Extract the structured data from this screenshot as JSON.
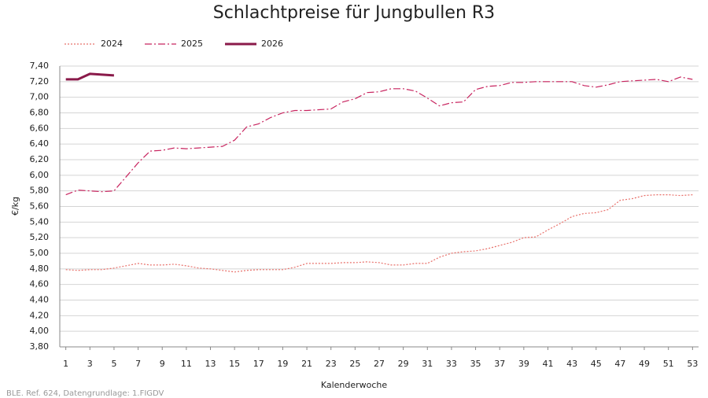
{
  "chart_data": {
    "type": "line",
    "title": "Schlachtpreise für Jungbullen R3",
    "x_label": "Kalenderwoche",
    "y_label": "€/kg",
    "source": "BLE. Ref. 624, Datengrundlage: 1.FIGDV",
    "x": [
      1,
      2,
      3,
      4,
      5,
      6,
      7,
      8,
      9,
      10,
      11,
      12,
      13,
      14,
      15,
      16,
      17,
      18,
      19,
      20,
      21,
      22,
      23,
      24,
      25,
      26,
      27,
      28,
      29,
      30,
      31,
      32,
      33,
      34,
      35,
      36,
      37,
      38,
      39,
      40,
      41,
      42,
      43,
      44,
      45,
      46,
      47,
      48,
      49,
      50,
      51,
      52,
      53
    ],
    "series": [
      {
        "name": "2024",
        "color": "#e8706a",
        "line_style": "dotted",
        "values": [
          4.79,
          4.78,
          4.79,
          4.79,
          4.81,
          4.84,
          4.87,
          4.85,
          4.85,
          4.86,
          4.84,
          4.81,
          4.8,
          4.78,
          4.76,
          4.78,
          4.79,
          4.79,
          4.79,
          4.82,
          4.87,
          4.87,
          4.87,
          4.88,
          4.88,
          4.89,
          4.88,
          4.85,
          4.85,
          4.87,
          4.87,
          4.95,
          5.0,
          5.02,
          5.03,
          5.06,
          5.1,
          5.14,
          5.2,
          5.21,
          5.3,
          5.38,
          5.47,
          5.51,
          5.52,
          5.56,
          5.68,
          5.7,
          5.74,
          5.75,
          5.75,
          5.74,
          5.75
        ]
      },
      {
        "name": "2025",
        "color": "#c8245f",
        "line_style": "dashdot",
        "values": [
          5.75,
          5.81,
          5.8,
          5.79,
          5.8,
          5.98,
          6.16,
          6.31,
          6.32,
          6.35,
          6.34,
          6.35,
          6.36,
          6.37,
          6.45,
          6.62,
          6.66,
          6.74,
          6.8,
          6.83,
          6.83,
          6.84,
          6.85,
          6.94,
          6.98,
          7.06,
          7.07,
          7.11,
          7.11,
          7.08,
          6.99,
          6.89,
          6.93,
          6.94,
          7.1,
          7.14,
          7.15,
          7.19,
          7.19,
          7.2,
          7.2,
          7.2,
          7.2,
          7.15,
          7.13,
          7.16,
          7.2,
          7.21,
          7.22,
          7.23,
          7.2,
          7.26,
          7.23
        ]
      },
      {
        "name": "2026",
        "color": "#8a1a4a",
        "line_style": "solid",
        "values": [
          7.23,
          7.23,
          7.3,
          7.29,
          7.28,
          null,
          null,
          null,
          null,
          null,
          null,
          null,
          null,
          null,
          null,
          null,
          null,
          null,
          null,
          null,
          null,
          null,
          null,
          null,
          null,
          null,
          null,
          null,
          null,
          null,
          null,
          null,
          null,
          null,
          null,
          null,
          null,
          null,
          null,
          null,
          null,
          null,
          null,
          null,
          null,
          null,
          null,
          null,
          null,
          null,
          null,
          null,
          null
        ]
      }
    ],
    "xlim": [
      0.5,
      53.5
    ],
    "xticks": [
      1,
      3,
      5,
      7,
      9,
      11,
      13,
      15,
      17,
      19,
      21,
      23,
      25,
      27,
      29,
      31,
      33,
      35,
      37,
      39,
      41,
      43,
      45,
      47,
      49,
      51,
      53
    ],
    "ylim": [
      3.8,
      7.4
    ],
    "yticks": [
      {
        "value": 3.8,
        "label": "3,80"
      },
      {
        "value": 4.0,
        "label": "4,00"
      },
      {
        "value": 4.2,
        "label": "4,20"
      },
      {
        "value": 4.4,
        "label": "4,40"
      },
      {
        "value": 4.6,
        "label": "4,60"
      },
      {
        "value": 4.8,
        "label": "4,80"
      },
      {
        "value": 5.0,
        "label": "5,00"
      },
      {
        "value": 5.2,
        "label": "5,20"
      },
      {
        "value": 5.4,
        "label": "5,40"
      },
      {
        "value": 5.6,
        "label": "5,60"
      },
      {
        "value": 5.8,
        "label": "5,80"
      },
      {
        "value": 6.0,
        "label": "6,00"
      },
      {
        "value": 6.2,
        "label": "6,20"
      },
      {
        "value": 6.4,
        "label": "6,40"
      },
      {
        "value": 6.6,
        "label": "6,60"
      },
      {
        "value": 6.8,
        "label": "6,80"
      },
      {
        "value": 7.0,
        "label": "7,00"
      },
      {
        "value": 7.2,
        "label": "7,20"
      },
      {
        "value": 7.4,
        "label": "7,40"
      }
    ],
    "grid": true,
    "legend": "top-left"
  }
}
